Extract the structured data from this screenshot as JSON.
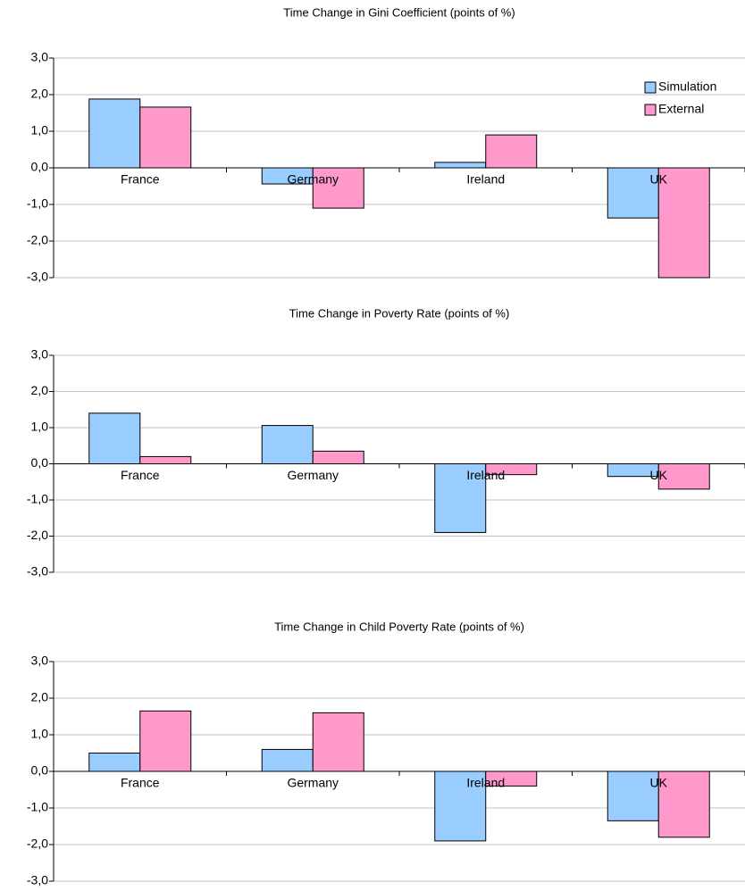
{
  "chart_data": [
    {
      "type": "bar",
      "title": "Time Change in Gini Coefficient (points of %)",
      "categories": [
        "France",
        "Germany",
        "Ireland",
        "UK"
      ],
      "series": [
        {
          "name": "Simulation",
          "color": "#99ccff",
          "values": [
            1.88,
            -0.44,
            0.15,
            -1.37
          ]
        },
        {
          "name": "External",
          "color": "#ff99cc",
          "values": [
            1.66,
            -1.1,
            0.9,
            -3.0
          ]
        }
      ],
      "ylim": [
        -3,
        3
      ],
      "yticks": [
        {
          "value": 3,
          "label": "3,0"
        },
        {
          "value": 2,
          "label": "2,0"
        },
        {
          "value": 1,
          "label": "1,0"
        },
        {
          "value": 0,
          "label": "0,0"
        },
        {
          "value": -1,
          "label": "-1,0"
        },
        {
          "value": -2,
          "label": "-2,0"
        },
        {
          "value": -3,
          "label": "-3,0"
        }
      ],
      "grid": true,
      "legend": "top-right"
    },
    {
      "type": "bar",
      "title": "Time Change in Poverty Rate (points of %)",
      "categories": [
        "France",
        "Germany",
        "Ireland",
        "UK"
      ],
      "series": [
        {
          "color": "#99ccff",
          "values": [
            1.4,
            1.06,
            -1.9,
            -0.35
          ]
        },
        {
          "color": "#ff99cc",
          "values": [
            0.2,
            0.35,
            -0.3,
            -0.7
          ]
        }
      ],
      "ylim": [
        -3,
        3
      ],
      "yticks": [
        {
          "value": 3,
          "label": "3,0"
        },
        {
          "value": 2,
          "label": "2,0"
        },
        {
          "value": 1,
          "label": "1,0"
        },
        {
          "value": 0,
          "label": "0,0"
        },
        {
          "value": -1,
          "label": "-1,0"
        },
        {
          "value": -2,
          "label": "-2,0"
        },
        {
          "value": -3,
          "label": "-3,0"
        }
      ],
      "grid": true
    },
    {
      "type": "bar",
      "title": "Time Change in Child Poverty Rate (points of %)",
      "categories": [
        "France",
        "Germany",
        "Ireland",
        "UK"
      ],
      "series": [
        {
          "color": "#99ccff",
          "values": [
            0.5,
            0.6,
            -1.9,
            -1.35
          ]
        },
        {
          "color": "#ff99cc",
          "values": [
            1.65,
            1.6,
            -0.4,
            -1.8
          ]
        }
      ],
      "ylim": [
        -3,
        3
      ],
      "yticks": [
        {
          "value": 3,
          "label": "3,0"
        },
        {
          "value": 2,
          "label": "2,0"
        },
        {
          "value": 1,
          "label": "1,0"
        },
        {
          "value": 0,
          "label": "0,0"
        },
        {
          "value": -1,
          "label": "-1,0"
        },
        {
          "value": -2,
          "label": "-2,0"
        },
        {
          "value": -3,
          "label": "-3,0"
        }
      ],
      "grid": true
    }
  ]
}
